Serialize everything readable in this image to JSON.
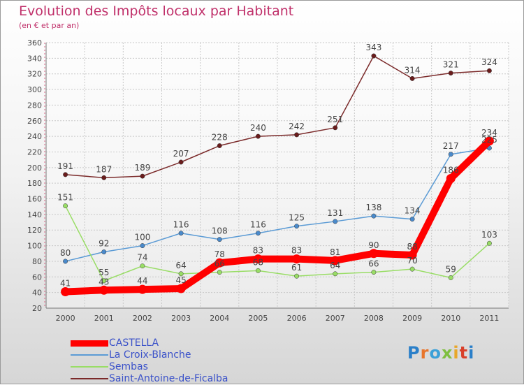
{
  "title": "Evolution des Impôts locaux par Habitant",
  "subtitle": "(en € et par an)",
  "logo_text": "Proxiti",
  "chart_data": {
    "type": "line",
    "categories": [
      "2000",
      "2001",
      "2002",
      "2003",
      "2004",
      "2005",
      "2006",
      "2007",
      "2008",
      "2009",
      "2010",
      "2011"
    ],
    "ylim": [
      20,
      360
    ],
    "yticks": [
      20,
      40,
      60,
      80,
      100,
      120,
      140,
      160,
      180,
      200,
      220,
      240,
      260,
      280,
      300,
      320,
      340,
      360
    ],
    "grid": true,
    "legend_position": "bottom-left",
    "series": [
      {
        "name": "CASTELLA",
        "color": "#ff0000",
        "values": [
          41,
          43,
          44,
          45,
          78,
          83,
          83,
          81,
          90,
          88,
          186,
          234
        ],
        "labels": [
          "41",
          "43",
          "44",
          "45",
          "78",
          "83",
          "83",
          "81",
          "90",
          "88",
          "186",
          "234"
        ]
      },
      {
        "name": "La Croix-Blanche",
        "color": "#5b9bd5",
        "values": [
          80,
          92,
          100,
          116,
          108,
          116,
          125,
          131,
          138,
          134,
          217,
          225
        ],
        "labels": [
          "80",
          "92",
          "100",
          "116",
          "108",
          "116",
          "125",
          "131",
          "138",
          "134",
          "217",
          "225"
        ]
      },
      {
        "name": "Sembas",
        "color": "#99dd66",
        "values": [
          151,
          55,
          74,
          64,
          66,
          68,
          61,
          64,
          66,
          70,
          59,
          103
        ],
        "labels": [
          "151",
          "55",
          "74",
          "64",
          "66",
          "68",
          "61",
          "64",
          "66",
          "70",
          "59",
          "103"
        ]
      },
      {
        "name": "Saint-Antoine-de-Ficalba",
        "color": "#7b2a2a",
        "values": [
          191,
          187,
          189,
          207,
          228,
          240,
          242,
          251,
          343,
          314,
          321,
          324
        ],
        "labels": [
          "191",
          "187",
          "189",
          "207",
          "228",
          "240",
          "242",
          "251",
          "343",
          "314",
          "321",
          "324"
        ]
      }
    ]
  }
}
